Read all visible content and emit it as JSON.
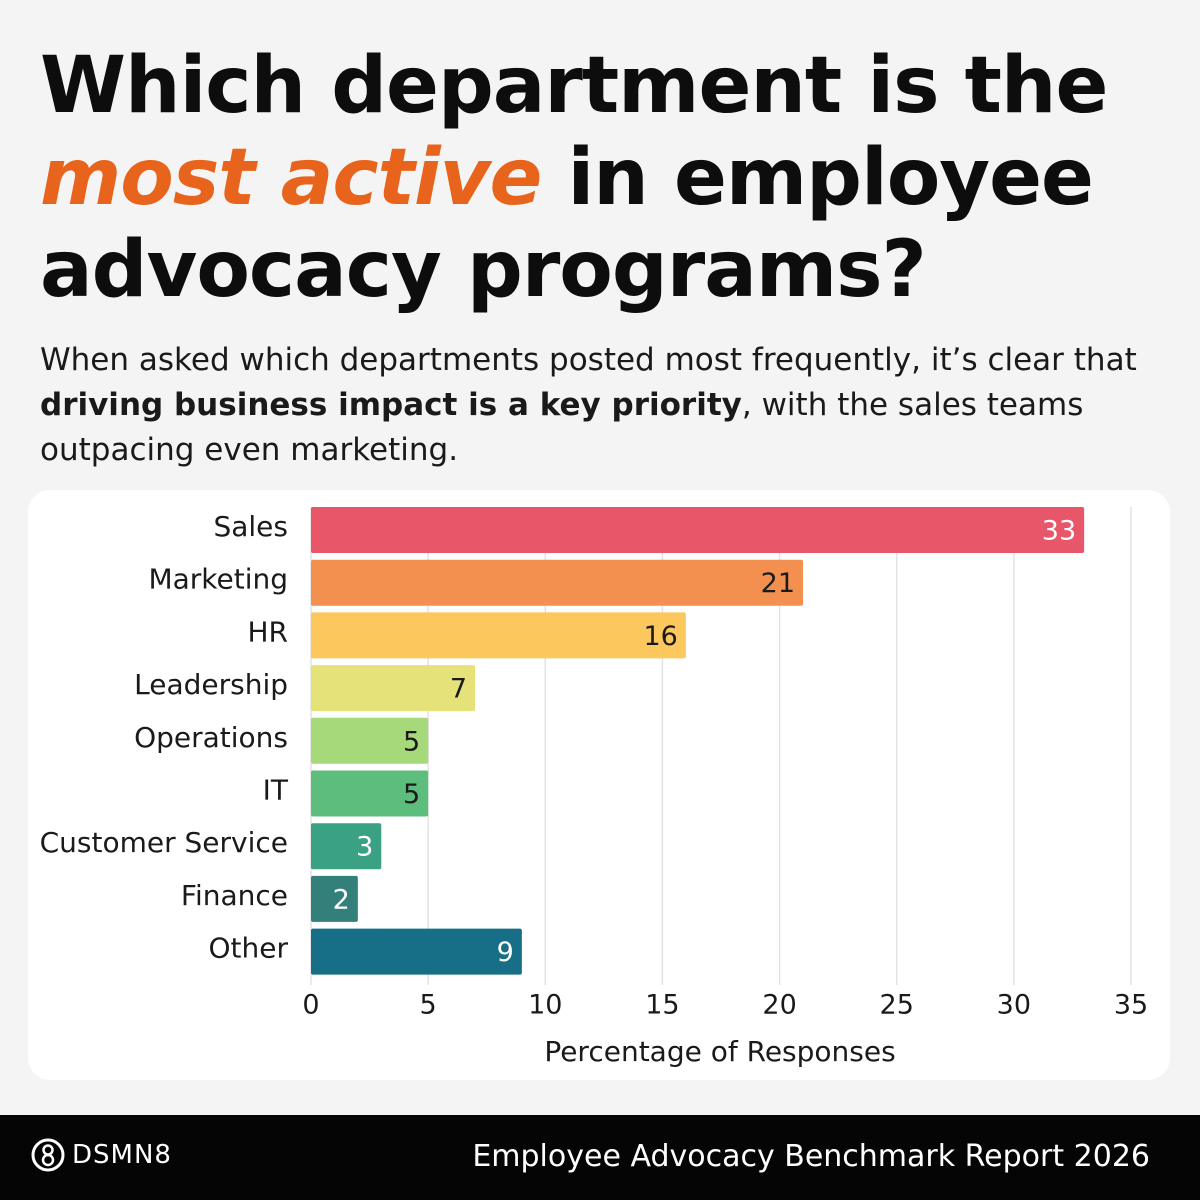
{
  "header": {
    "title": [
      "Which department is the ",
      "most active",
      " in employee advocacy programs?"
    ],
    "subtitle": [
      "When asked which departments posted most frequently, it’s clear that ",
      "driving business impact is a key priority",
      ", with the sales teams outpacing even marketing."
    ]
  },
  "chart_data": {
    "type": "bar",
    "orientation": "horizontal",
    "categories": [
      "Sales",
      "Marketing",
      "HR",
      "Leadership",
      "Operations",
      "IT",
      "Customer Service",
      "Finance",
      "Other"
    ],
    "values": [
      33,
      21,
      16,
      7,
      5,
      5,
      3,
      2,
      9
    ],
    "colors": [
      "#e8566a",
      "#f4904f",
      "#fcc75c",
      "#e5e27a",
      "#a6d97a",
      "#5cbd7d",
      "#3aa184",
      "#337f7a",
      "#166f87"
    ],
    "xlim": [
      0,
      35
    ],
    "xticks": [
      0,
      5,
      10,
      15,
      20,
      25,
      30,
      35
    ],
    "grid": true,
    "x_label": "Percentage of Responses"
  },
  "footer": {
    "logo": "DSMN8",
    "report": "Employee Advocacy Benchmark Report 2026"
  }
}
